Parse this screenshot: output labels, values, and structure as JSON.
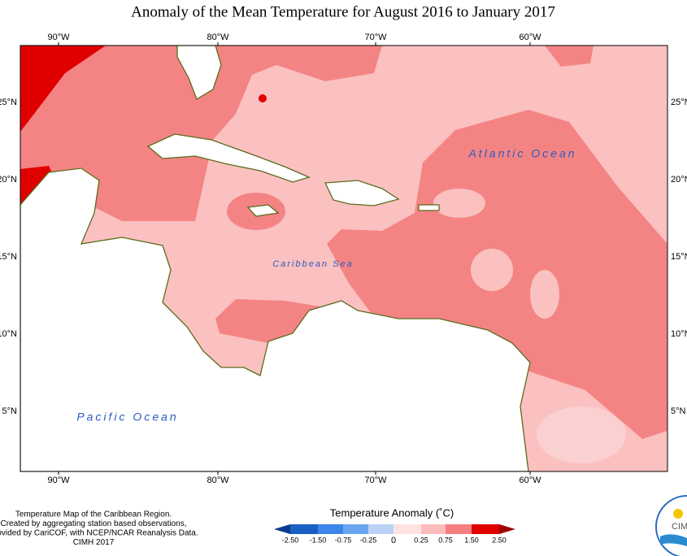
{
  "title": "Anomaly of the Mean Temperature for August 2016 to January 2017",
  "map": {
    "lon_labels": [
      "90°W",
      "80°W",
      "70°W",
      "60°W"
    ],
    "lat_labels": [
      "25°N",
      "20°N",
      "15°N",
      "10°N",
      "5°N"
    ],
    "places": [
      "Atlantic Ocean",
      "Caribbean Sea",
      "Pacific Ocean"
    ]
  },
  "legend": {
    "title": "Temperature Anomaly (˚C)",
    "ticks": [
      "-2.50",
      "-1.50",
      "-0.75",
      "-0.25",
      "0",
      "0.25",
      "0.75",
      "1.50",
      "2.50"
    ],
    "colors": [
      "#0b3b8c",
      "#1a5fc4",
      "#3a86ea",
      "#6aa6f0",
      "#b9d2f6",
      "#fde2e2",
      "#fbbcbc",
      "#f47f7f",
      "#e00000",
      "#a00000"
    ]
  },
  "footer": {
    "lines": [
      "Temperature Map of the Caribbean Region.",
      "Created by aggregating station based observations,",
      "Provided by CariCOF, with NCEP/NCAR Reanalysis Data.",
      "CIMH 2017"
    ]
  },
  "logo": {
    "text": "CIMH"
  }
}
